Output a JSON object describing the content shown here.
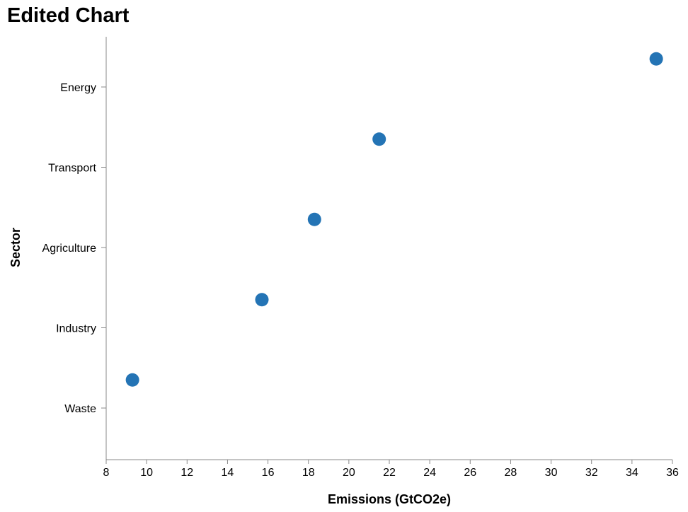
{
  "chart_data": {
    "type": "scatter",
    "title": "Edited Chart",
    "xlabel": "Emissions (GtCO2e)",
    "ylabel": "Sector",
    "categories": [
      "Energy",
      "Transport",
      "Agriculture",
      "Industry",
      "Waste"
    ],
    "series": [
      {
        "points": [
          {
            "category": "Energy",
            "value": 35.2
          },
          {
            "category": "Transport",
            "value": 21.5
          },
          {
            "category": "Agriculture",
            "value": 18.3
          },
          {
            "category": "Industry",
            "value": 15.7
          },
          {
            "category": "Waste",
            "value": 9.3
          }
        ]
      }
    ],
    "xlim": [
      8,
      36
    ],
    "xticks": [
      8,
      10,
      12,
      14,
      16,
      18,
      20,
      22,
      24,
      26,
      28,
      30,
      32,
      34,
      36
    ],
    "grid": false,
    "legend": "none",
    "point_color": "#2474b5"
  }
}
